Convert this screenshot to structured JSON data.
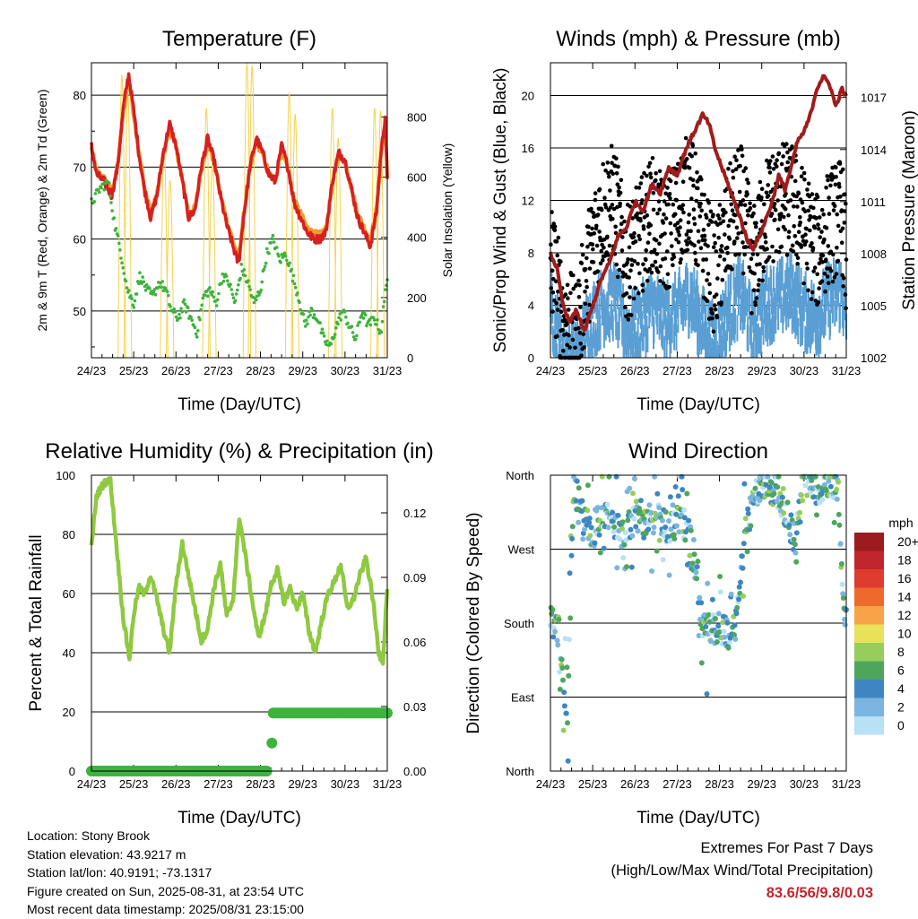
{
  "x_ticks": [
    "24/23",
    "25/23",
    "26/23",
    "27/23",
    "28/23",
    "29/23",
    "30/23",
    "31/23"
  ],
  "colors": {
    "temp_2m": "#d62020",
    "temp_9m": "#f39a2b",
    "dewpoint": "#3db33d",
    "insolation": "#f5d24a",
    "wind_sonic": "#5a9fd4",
    "gust": "#000000",
    "pressure": "#a01c1c",
    "humidity": "#8fc941",
    "precip": "#3db33d",
    "highlight_values": "#c0272d"
  },
  "chart_data": [
    {
      "type": "line",
      "title": "Temperature (F)",
      "xlabel": "Time (Day/UTC)",
      "ylabel": "2m & 9m T (Red, Orange) & 2m Td (Green)",
      "ylabel_right": "Solar Insolation (Yellow)",
      "ylim": [
        43.5,
        84.5
      ],
      "yticks": [
        50,
        60,
        70,
        80
      ],
      "ylim_right": [
        0,
        980
      ],
      "yticks_right": [
        0,
        200,
        400,
        600,
        800
      ],
      "grid": true,
      "series": [
        {
          "name": "2m T",
          "axis": "left",
          "x": [
            0,
            0.12,
            0.3,
            0.48,
            0.62,
            0.75,
            0.88,
            1.02,
            1.12,
            1.25,
            1.4,
            1.55,
            1.7,
            1.85,
            2.0,
            2.15,
            2.3,
            2.45,
            2.6,
            2.75,
            2.9,
            3.05,
            3.2,
            3.35,
            3.48,
            3.6,
            3.75,
            3.9,
            4.05,
            4.2,
            4.35,
            4.5,
            4.65,
            4.8,
            4.95,
            5.1,
            5.25,
            5.4,
            5.55,
            5.7,
            5.85,
            6.0,
            6.15,
            6.3,
            6.45,
            6.6,
            6.75,
            6.85,
            6.95,
            7.0
          ],
          "y": [
            73,
            69,
            68,
            66,
            70,
            78,
            83,
            77,
            72,
            67,
            63,
            66,
            72,
            76,
            73,
            68,
            63,
            64,
            70,
            74,
            71,
            66,
            62,
            59,
            56.5,
            63,
            70,
            74,
            72,
            69,
            68,
            73,
            70,
            65,
            63,
            61,
            60,
            60,
            61,
            68,
            72,
            71,
            67,
            63,
            61,
            59,
            64,
            72,
            77,
            68
          ]
        },
        {
          "name": "9m T",
          "axis": "left",
          "x": [
            0,
            0.12,
            0.3,
            0.48,
            0.62,
            0.75,
            0.88,
            1.02,
            1.12,
            1.25,
            1.4,
            1.55,
            1.7,
            1.85,
            2.0,
            2.15,
            2.3,
            2.45,
            2.6,
            2.75,
            2.9,
            3.05,
            3.2,
            3.35,
            3.48,
            3.6,
            3.75,
            3.9,
            4.05,
            4.2,
            4.35,
            4.5,
            4.65,
            4.8,
            4.95,
            5.1,
            5.25,
            5.4,
            5.55,
            5.7,
            5.85,
            6.0,
            6.15,
            6.3,
            6.45,
            6.6,
            6.75,
            6.85,
            6.95,
            7.0
          ],
          "y": [
            72.6,
            69.4,
            68.4,
            66.5,
            70.2,
            77.4,
            82.4,
            76.6,
            72.2,
            67.4,
            63.6,
            66.2,
            71.6,
            75.4,
            72.8,
            68.2,
            63.6,
            64.3,
            69.7,
            73.5,
            70.8,
            66.3,
            62.6,
            59.7,
            57.2,
            63.2,
            69.6,
            73.5,
            71.8,
            69.0,
            68.2,
            72.6,
            69.8,
            65.3,
            63.5,
            61.6,
            60.7,
            60.6,
            61.4,
            67.6,
            71.6,
            70.8,
            67.2,
            63.5,
            61.6,
            59.8,
            64.3,
            71.6,
            76.4,
            68.3
          ]
        },
        {
          "name": "2m Td",
          "axis": "left",
          "x": [
            0,
            0.2,
            0.4,
            0.55,
            0.7,
            0.85,
            1.0,
            1.15,
            1.3,
            1.45,
            1.6,
            1.75,
            1.9,
            2.05,
            2.2,
            2.35,
            2.5,
            2.65,
            2.8,
            2.95,
            3.1,
            3.25,
            3.4,
            3.55,
            3.7,
            3.85,
            4.0,
            4.15,
            4.3,
            4.45,
            4.6,
            4.75,
            4.9,
            5.05,
            5.2,
            5.35,
            5.5,
            5.65,
            5.8,
            5.95,
            6.1,
            6.25,
            6.4,
            6.55,
            6.7,
            6.85,
            7.0
          ],
          "y": [
            65,
            67,
            68,
            62,
            58,
            53,
            51,
            55,
            53,
            52,
            54,
            53,
            50,
            49,
            51,
            49,
            47,
            52,
            53,
            51,
            55,
            54,
            51,
            56,
            54,
            51,
            53,
            58,
            60,
            57,
            58,
            55,
            52,
            48,
            50,
            49,
            46,
            45,
            48,
            50,
            48,
            46,
            50,
            48,
            49,
            47,
            55
          ]
        },
        {
          "name": "Solar Insolation",
          "axis": "right",
          "note": "daily insolation peaks",
          "peaks_x": [
            0.72,
            0.86,
            1.72,
            1.86,
            2.72,
            2.86,
            3.68,
            3.8,
            4.68,
            4.82,
            5.7,
            5.84,
            6.7,
            6.84
          ],
          "peaks_y": [
            940,
            880,
            690,
            590,
            830,
            650,
            980,
            970,
            880,
            810,
            830,
            730,
            830,
            820
          ]
        }
      ]
    },
    {
      "type": "scatter",
      "title": "Winds (mph) & Pressure (mb)",
      "xlabel": "Time (Day/UTC)",
      "ylabel": "Sonic/Prop Wind & Gust (Blue, Black)",
      "ylabel_right": "Station Pressure (Maroon)",
      "ylim": [
        0,
        22.5
      ],
      "yticks": [
        0,
        4,
        8,
        12,
        16,
        20
      ],
      "ylim_right": [
        1002,
        1019
      ],
      "yticks_right": [
        1002,
        1005,
        1008,
        1011,
        1014,
        1017
      ],
      "grid": true,
      "series": [
        {
          "name": "Station Pressure",
          "axis": "right",
          "x": [
            0,
            0.15,
            0.3,
            0.45,
            0.6,
            0.8,
            1.0,
            1.2,
            1.4,
            1.6,
            1.8,
            2.0,
            2.2,
            2.4,
            2.6,
            2.8,
            3.0,
            3.2,
            3.4,
            3.6,
            3.75,
            3.9,
            4.05,
            4.2,
            4.35,
            4.5,
            4.65,
            4.8,
            4.95,
            5.1,
            5.25,
            5.4,
            5.55,
            5.7,
            5.85,
            6.0,
            6.15,
            6.3,
            6.45,
            6.6,
            6.75,
            6.9,
            7.0
          ],
          "y": [
            1008,
            1007.2,
            1005,
            1004,
            1004.8,
            1003.5,
            1005,
            1006.5,
            1007.5,
            1009,
            1009.5,
            1011,
            1010.5,
            1012,
            1011.5,
            1013,
            1012.5,
            1014,
            1015,
            1016,
            1015.5,
            1014,
            1013,
            1012,
            1011,
            1010,
            1008.8,
            1008.3,
            1009,
            1010,
            1011,
            1012.5,
            1011.7,
            1013,
            1014.5,
            1015,
            1016,
            1017.5,
            1018.2,
            1017.8,
            1016.5,
            1017.5,
            1017
          ]
        },
        {
          "name": "Sonic/Prop Wind",
          "axis": "left",
          "x": [
            0,
            0.3,
            0.6,
            0.9,
            1.2,
            1.5,
            1.8,
            2.1,
            2.4,
            2.7,
            3.0,
            3.3,
            3.6,
            3.9,
            4.2,
            4.5,
            4.8,
            5.1,
            5.4,
            5.7,
            6.0,
            6.3,
            6.6,
            6.9,
            7.0
          ],
          "y": [
            5,
            1.5,
            0.8,
            3.5,
            4.8,
            5.4,
            3,
            3.5,
            5,
            3.8,
            4.5,
            5.8,
            3.5,
            2,
            4.5,
            5.8,
            3,
            5,
            5.5,
            6,
            4.5,
            4,
            5.5,
            6,
            3.5
          ]
        },
        {
          "name": "Gust",
          "axis": "left",
          "x": [
            0,
            0.3,
            0.6,
            0.9,
            1.2,
            1.5,
            1.8,
            2.1,
            2.4,
            2.7,
            3.0,
            3.3,
            3.6,
            3.9,
            4.2,
            4.5,
            4.8,
            5.1,
            5.4,
            5.7,
            6.0,
            6.3,
            6.6,
            6.9,
            7.0
          ],
          "y": [
            8,
            3,
            1.5,
            7,
            11,
            12,
            7,
            9,
            11,
            9,
            11,
            13,
            9,
            6,
            10,
            12,
            7,
            11,
            12,
            12,
            10,
            8,
            10,
            11,
            7
          ]
        }
      ]
    },
    {
      "type": "line",
      "title": "Relative Humidity (%) & Precipitation (in)",
      "xlabel": "Time (Day/UTC)",
      "ylabel": "Percent & Total Rainfall",
      "ylim": [
        0,
        100
      ],
      "yticks": [
        0,
        20,
        40,
        60,
        80,
        100
      ],
      "ylim_right": [
        0,
        0.1375
      ],
      "yticks_right": [
        "0.00",
        "0.03",
        "0.06",
        "0.09",
        "0.12"
      ],
      "grid": true,
      "series": [
        {
          "name": "Relative Humidity",
          "axis": "left",
          "x": [
            0,
            0.12,
            0.3,
            0.45,
            0.6,
            0.75,
            0.9,
            1.0,
            1.12,
            1.25,
            1.4,
            1.55,
            1.7,
            1.85,
            2.0,
            2.15,
            2.3,
            2.45,
            2.6,
            2.75,
            2.9,
            3.05,
            3.2,
            3.35,
            3.5,
            3.65,
            3.8,
            3.95,
            4.1,
            4.25,
            4.4,
            4.55,
            4.7,
            4.85,
            5.0,
            5.15,
            5.3,
            5.45,
            5.6,
            5.75,
            5.9,
            6.05,
            6.2,
            6.35,
            6.5,
            6.65,
            6.8,
            6.9,
            7.0
          ],
          "y": [
            76,
            93,
            97.5,
            98,
            75,
            52,
            38,
            53,
            62,
            60,
            66,
            58,
            48,
            40,
            63,
            77,
            66,
            55,
            44,
            48,
            62,
            70,
            52,
            58,
            86,
            72,
            58,
            45,
            52,
            63,
            68,
            57,
            62,
            55,
            60,
            47,
            40,
            51,
            60,
            64,
            70,
            55,
            58,
            66,
            72,
            59,
            40,
            37,
            62
          ]
        },
        {
          "name": "Total Precipitation",
          "axis": "right",
          "x": [
            0,
            4.2,
            4.27,
            4.32,
            4.6,
            5.5,
            6.5,
            7.0
          ],
          "y": [
            0,
            0,
            0.013,
            0.027,
            0.027,
            0.027,
            0.027,
            0.027
          ]
        }
      ]
    },
    {
      "type": "scatter",
      "title": "Wind Direction",
      "xlabel": "Time (Day/UTC)",
      "ylabel": "Direction (Colored By Speed)",
      "y_categories": [
        "North",
        "East",
        "South",
        "West",
        "North"
      ],
      "ylim": [
        0,
        360
      ],
      "grid": true,
      "legend": {
        "title": "mph",
        "labels": [
          "20+",
          "18",
          "16",
          "14",
          "12",
          "10",
          "8",
          "6",
          "4",
          "2",
          "0"
        ],
        "colors": [
          "#9b1b1e",
          "#c0272d",
          "#dd3c2e",
          "#ee6a2c",
          "#f7a449",
          "#e7e25a",
          "#97cd5b",
          "#4ea65d",
          "#3e86c2",
          "#7ab5e0",
          "#b8e1f6"
        ]
      },
      "series": [
        {
          "name": "Wind Direction",
          "x": [
            0,
            0.2,
            0.4,
            0.55,
            0.7,
            0.85,
            1.0,
            1.2,
            1.4,
            1.6,
            1.8,
            2.0,
            2.2,
            2.4,
            2.6,
            2.8,
            3.0,
            3.2,
            3.4,
            3.6,
            3.8,
            4.0,
            4.2,
            4.4,
            4.6,
            4.8,
            5.0,
            5.2,
            5.4,
            5.6,
            5.8,
            6.0,
            6.2,
            6.4,
            6.6,
            6.8,
            6.95
          ],
          "y": [
            180,
            170,
            60,
            350,
            320,
            300,
            290,
            310,
            305,
            300,
            290,
            310,
            300,
            295,
            310,
            290,
            305,
            300,
            260,
            180,
            170,
            175,
            165,
            180,
            290,
            330,
            355,
            345,
            340,
            310,
            280,
            355,
            350,
            340,
            355,
            350,
            180
          ]
        }
      ]
    }
  ],
  "info": {
    "location": "Location: Stony Brook",
    "elevation": "Station elevation: 43.9217 m",
    "latlon": "Station lat/lon: 40.9191; -73.1317",
    "created": "Figure created on Sun, 2025-08-31, at 23:54 UTC",
    "recent": "Most recent data timestamp: 2025/08/31 23:15:00"
  },
  "extremes": {
    "title": "Extremes For Past 7 Days",
    "subtitle": "(High/Low/Max Wind/Total Precipitation)",
    "values": "83.6/56/9.8/0.03"
  }
}
